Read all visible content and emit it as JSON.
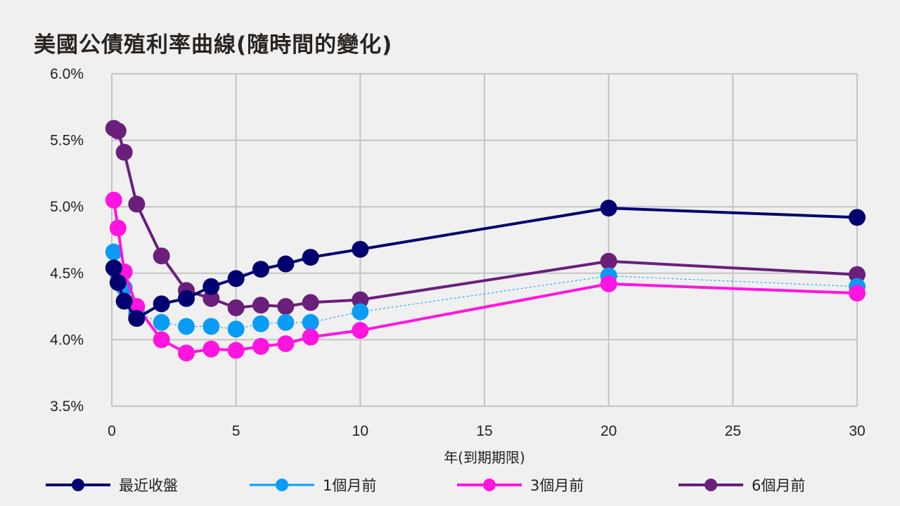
{
  "chart_data": {
    "type": "line",
    "title": "美國公債殖利率曲線(隨時間的變化)",
    "xlabel": "年(到期期限)",
    "ylabel": "",
    "xlim": [
      0,
      30
    ],
    "ylim": [
      3.5,
      6.0
    ],
    "xticks": [
      "0",
      "5",
      "10",
      "15",
      "20",
      "25",
      "30"
    ],
    "yticks": [
      "3.5%",
      "4.0%",
      "4.5%",
      "5.0%",
      "5.5%",
      "6.0%"
    ],
    "grid": true,
    "legend_position": "bottom",
    "x": [
      0.08,
      0.25,
      0.5,
      1,
      2,
      3,
      4,
      5,
      6,
      7,
      8,
      10,
      20,
      30
    ],
    "series": [
      {
        "name": "最近收盤",
        "color": "#000070",
        "dashed": false,
        "values": [
          4.54,
          4.43,
          4.29,
          4.16,
          4.27,
          4.31,
          4.4,
          4.46,
          4.53,
          4.57,
          4.62,
          4.68,
          4.99,
          4.92
        ]
      },
      {
        "name": "1個月前",
        "color": "#0a9cf5",
        "dashed": true,
        "values": [
          4.66,
          4.49,
          4.39,
          4.2,
          4.13,
          4.1,
          4.1,
          4.08,
          4.12,
          4.13,
          4.13,
          4.21,
          4.48,
          4.4
        ]
      },
      {
        "name": "3個月前",
        "color": "#ff14e0",
        "dashed": false,
        "values": [
          5.05,
          4.84,
          4.51,
          4.25,
          4.0,
          3.9,
          3.93,
          3.92,
          3.95,
          3.97,
          4.02,
          4.07,
          4.42,
          4.35
        ]
      },
      {
        "name": "6個月前",
        "color": "#6a1f7a",
        "dashed": false,
        "values": [
          5.59,
          5.57,
          5.41,
          5.02,
          4.63,
          4.37,
          4.31,
          4.24,
          4.26,
          4.25,
          4.28,
          4.3,
          4.59,
          4.49
        ]
      }
    ]
  }
}
